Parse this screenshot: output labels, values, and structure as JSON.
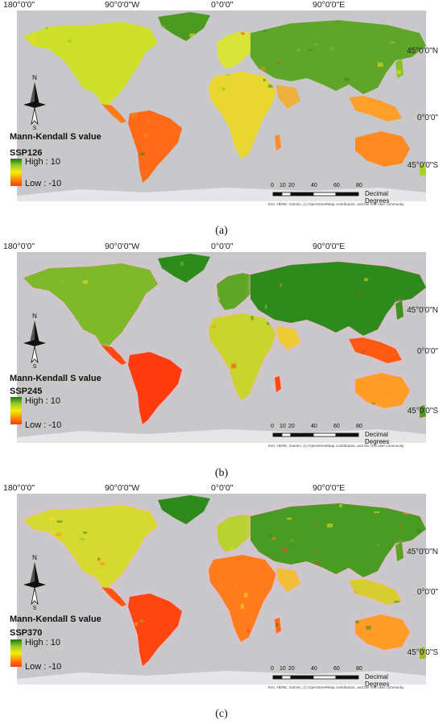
{
  "lon_labels": [
    "180°0'0\"",
    "90°0'0\"W",
    "0°0'0\"",
    "90°0'0\"E"
  ],
  "lat_labels": [
    "45°0'0\"N",
    "0°0'0\"",
    "45°0'0\"S"
  ],
  "legend": {
    "title": "Mann-Kendall S value",
    "high": "High : 10",
    "low": "Low : -10",
    "ramp_colors": [
      "#1a7a10",
      "#9acb2a",
      "#f4f000",
      "#ff8c00",
      "#ff3b10"
    ]
  },
  "north_label": "N",
  "south_label": "S",
  "scale": {
    "ticks": [
      "0",
      "10",
      "20",
      "40",
      "60",
      "80"
    ],
    "unit": "Decimal Degrees"
  },
  "credit": "Esri, HERE, Garmin, (c) OpenStreetMap contributors, and the GIS user community",
  "panels": [
    {
      "scenario": "SSP126",
      "caption": "(a)"
    },
    {
      "scenario": "SSP245",
      "caption": "(b)"
    },
    {
      "scenario": "SSP370",
      "caption": "(c)"
    }
  ],
  "colors": {
    "ocean": "#c8c8cb",
    "ice": "#e6e6e8",
    "green": "#2f8a1c",
    "red": "#ff3b10",
    "glow": "#ffb3cc"
  }
}
